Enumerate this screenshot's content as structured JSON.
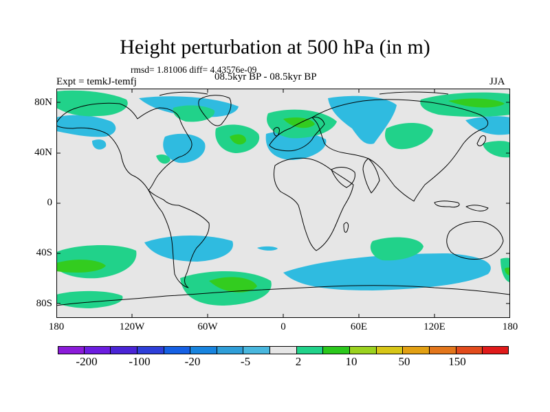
{
  "title": "Height perturbation at 500 hPa (in m)",
  "stats": "rmsd= 1.81006 diff= 4.43576e-09",
  "experiment": "Expt = temkJ-temfj",
  "period": "08.5kyr BP - 08.5kyr BP",
  "season": "JJA",
  "lat_ticks": [
    "80N",
    "40N",
    "0",
    "40S",
    "80S"
  ],
  "lon_ticks": [
    "180",
    "120W",
    "60W",
    "0",
    "60E",
    "120E",
    "180"
  ],
  "colorbar": {
    "labels": [
      "-200",
      "-100",
      "-20",
      "-5",
      "2",
      "10",
      "50",
      "150"
    ],
    "colors": [
      "#8b1bd9",
      "#6c1de0",
      "#4a24d6",
      "#2e3fd9",
      "#1560e4",
      "#1884df",
      "#2f9ed8",
      "#49b7de",
      "#e6e6e6",
      "#21d28a",
      "#2bc81c",
      "#9bd21f",
      "#d7c617",
      "#e2a013",
      "#e3761b",
      "#e24b1c",
      "#e01a1a"
    ]
  },
  "map_colors": {
    "background": "#e6e6e6",
    "negative": "#2fbbe0",
    "positive_light": "#21d28a",
    "positive_strong": "#33cc1f"
  }
}
